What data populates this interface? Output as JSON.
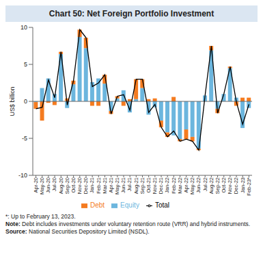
{
  "chart_data": {
    "type": "bar",
    "title": "Chart 50: Net Foreign Portfolio Investment",
    "y_label": "US$ billion",
    "categories": [
      "Apr-20",
      "May-20",
      "Jun-20",
      "Jul-20",
      "Aug-20",
      "Sep-20",
      "Oct-20",
      "Nov-20",
      "Dec-20",
      "Jan-21",
      "Feb-21",
      "Mar-21",
      "Apr-21",
      "May-21",
      "Jun-21",
      "Jul-21",
      "Aug-21",
      "Sep-21",
      "Oct-21",
      "Nov-21",
      "Dec-21",
      "Jan-22",
      "Feb-22",
      "Mar-22",
      "Apr-22",
      "May-22",
      "Jun-22",
      "Jul-22",
      "Aug-22",
      "Sep-22",
      "Oct-22",
      "Nov-22",
      "Dec-22",
      "Jan-23",
      "Feb-23*"
    ],
    "series": [
      {
        "name": "Equity",
        "type": "bar",
        "color": "#6cb6de",
        "values": [
          -0.1,
          1.8,
          3.1,
          1.0,
          6.4,
          -0.9,
          2.3,
          8.7,
          7.2,
          2.6,
          3.1,
          2.4,
          -1.3,
          0.4,
          1.5,
          -1.5,
          0.3,
          1.8,
          -1.8,
          -0.8,
          -2.6,
          -4.2,
          -4.6,
          -5.1,
          -3.8,
          -4.8,
          -6.4,
          0.8,
          6.9,
          -1.0,
          1.0,
          4.5,
          0.5,
          -3.6,
          -0.9
        ]
      },
      {
        "name": "Debt",
        "type": "bar",
        "color": "#f47b20",
        "values": [
          -0.9,
          -2.6,
          -0.2,
          -0.5,
          0.3,
          0.4,
          0.5,
          1.0,
          1.4,
          -0.6,
          -0.6,
          1.2,
          -0.4,
          0.3,
          -0.6,
          0.3,
          2.7,
          1.2,
          0.3,
          0.4,
          -0.9,
          -0.6,
          0.6,
          -0.3,
          -1.3,
          -0.6,
          -0.2,
          0.0,
          0.6,
          -0.6,
          0.0,
          0.2,
          -0.6,
          0.5,
          0.5
        ]
      },
      {
        "name": "Total",
        "type": "line",
        "color": "#000000",
        "values": [
          -1.0,
          -0.8,
          2.9,
          0.5,
          6.7,
          -0.5,
          2.8,
          9.7,
          8.6,
          2.0,
          2.5,
          3.6,
          -1.7,
          0.7,
          0.9,
          -1.2,
          3.0,
          3.0,
          -1.5,
          -0.4,
          -3.5,
          -4.8,
          -4.0,
          -5.4,
          -5.1,
          -5.4,
          -6.6,
          0.8,
          7.5,
          -1.6,
          1.0,
          4.7,
          -0.1,
          -3.1,
          -0.4
        ]
      }
    ],
    "stacked": true,
    "ylim": [
      -10,
      10
    ],
    "yticks": [
      -10,
      -5,
      0,
      5,
      10
    ],
    "grid": false,
    "legend": "bottom",
    "notes": [
      "*: Up to February 13, 2023.",
      "Note: Debt includes investments under voluntary retention route (VRR) and hybrid instruments.",
      "Source: National Securities Depository Limited (NSDL)."
    ]
  }
}
